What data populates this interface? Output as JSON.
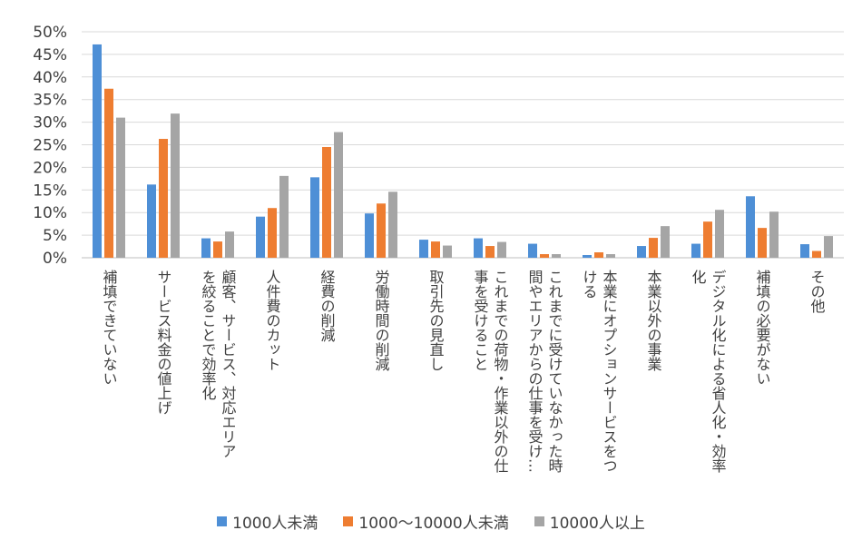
{
  "chart_data": {
    "type": "bar",
    "title": "",
    "xlabel": "",
    "ylabel": "",
    "ylim": [
      0,
      50
    ],
    "yticks": [
      "0%",
      "5%",
      "10%",
      "15%",
      "20%",
      "25%",
      "30%",
      "35%",
      "40%",
      "45%",
      "50%"
    ],
    "grid": true,
    "legend_position": "bottom",
    "categories": [
      [
        "補填できていない"
      ],
      [
        "サービス料金の値上げ"
      ],
      [
        "顧客、サービス、対応エリア",
        "を絞ることで効率化"
      ],
      [
        "人件費のカット"
      ],
      [
        "経費の削減"
      ],
      [
        "労働時間の削減"
      ],
      [
        "取引先の見直し"
      ],
      [
        "これまでの荷物・作業以外の仕",
        "事を受けること"
      ],
      [
        "これまでに受けていなかった時",
        "間やエリアからの仕事を受け…"
      ],
      [
        "本業にオプションサービスをつ",
        "ける"
      ],
      [
        "本業以外の事業"
      ],
      [
        "デジタル化による省人化・効率",
        "化"
      ],
      [
        "補填の必要がない"
      ],
      [
        "その他"
      ]
    ],
    "series": [
      {
        "name": "1000人未満",
        "color": "#4e8fd6",
        "values": [
          47.2,
          16.2,
          4.3,
          9.1,
          17.8,
          9.8,
          4.0,
          4.3,
          3.1,
          0.6,
          2.6,
          3.1,
          13.6,
          3.0
        ]
      },
      {
        "name": "1000～10000人未満",
        "color": "#ee7d31",
        "values": [
          37.4,
          26.3,
          3.6,
          11.0,
          24.5,
          12.0,
          3.6,
          2.6,
          0.8,
          1.2,
          4.4,
          8.0,
          6.6,
          1.5
        ]
      },
      {
        "name": "10000人以上",
        "color": "#a5a5a5",
        "values": [
          31.0,
          31.9,
          5.8,
          18.1,
          27.8,
          14.6,
          2.7,
          3.5,
          0.8,
          0.8,
          7.0,
          10.6,
          10.2,
          4.8
        ]
      }
    ]
  }
}
